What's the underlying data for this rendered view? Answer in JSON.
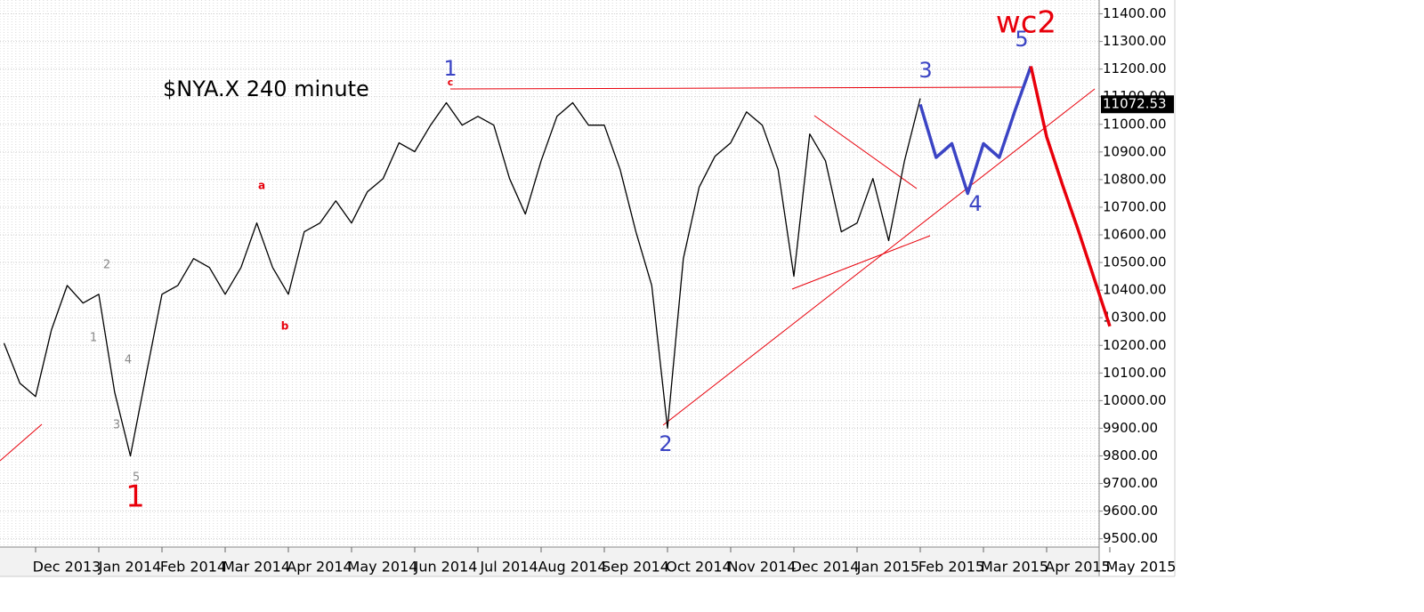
{
  "chart_data": {
    "type": "line",
    "title": "$NYA.X 240 minute",
    "categories": [
      null,
      null,
      "Dec 2013",
      null,
      null,
      null,
      "Jan 2014",
      null,
      null,
      null,
      "Feb 2014",
      null,
      null,
      null,
      "Mar 2014",
      null,
      null,
      null,
      "Apr 2014",
      null,
      null,
      null,
      "May 2014",
      null,
      null,
      null,
      "Jun 2014",
      null,
      null,
      null,
      "Jul 2014",
      null,
      null,
      null,
      "Aug 2014",
      null,
      null,
      null,
      "Sep 2014",
      null,
      null,
      null,
      "Oct 2014",
      null,
      null,
      null,
      "Nov 2014",
      null,
      null,
      null,
      "Dec 2014",
      null,
      null,
      null,
      "Jan 2015",
      null,
      null,
      null,
      "Feb 2015",
      null,
      null,
      null,
      "Mar 2015",
      null,
      null,
      null,
      "Apr 2015",
      null,
      null,
      null,
      "May 2015"
    ],
    "series": [
      {
        "color": "#000000",
        "values": [
          10208,
          10063,
          10015,
          10256,
          10417,
          10353,
          10385,
          10031,
          9800,
          10095,
          10385,
          10417,
          10514,
          10482,
          10385,
          10482,
          10643,
          10482,
          10385,
          10611,
          10643,
          10723,
          10643,
          10756,
          10804,
          10933,
          10901,
          10997,
          11078,
          10997,
          11029,
          10997,
          10804,
          10675,
          10868,
          11029,
          11078,
          10997,
          10997,
          10836,
          10611,
          10417,
          9900,
          10514,
          10772,
          10884,
          10933,
          11045,
          10997,
          10836,
          10450,
          10965,
          10868,
          10611,
          10643,
          10804,
          10579,
          10868,
          11094,
          null,
          null,
          null,
          null,
          null,
          null,
          null,
          null,
          null,
          null,
          null,
          null
        ]
      },
      {
        "color": "#3b44c4",
        "values": [
          null,
          null,
          null,
          null,
          null,
          null,
          null,
          null,
          null,
          null,
          null,
          null,
          null,
          null,
          null,
          null,
          null,
          null,
          null,
          null,
          null,
          null,
          null,
          null,
          null,
          null,
          null,
          null,
          null,
          null,
          null,
          null,
          null,
          null,
          null,
          null,
          null,
          null,
          null,
          null,
          null,
          null,
          null,
          null,
          null,
          null,
          null,
          null,
          null,
          null,
          null,
          null,
          null,
          null,
          null,
          null,
          null,
          null,
          11072,
          10880,
          10930,
          10750,
          10930,
          10880,
          11050,
          11210,
          null,
          null,
          null,
          null,
          null
        ]
      },
      {
        "color": "#e8000b",
        "values": [
          null,
          null,
          null,
          null,
          null,
          null,
          null,
          null,
          null,
          null,
          null,
          null,
          null,
          null,
          null,
          null,
          null,
          null,
          null,
          null,
          null,
          null,
          null,
          null,
          null,
          null,
          null,
          null,
          null,
          null,
          null,
          null,
          null,
          null,
          null,
          null,
          null,
          null,
          null,
          null,
          null,
          null,
          null,
          null,
          null,
          null,
          null,
          null,
          null,
          null,
          null,
          null,
          null,
          null,
          null,
          null,
          null,
          null,
          null,
          null,
          null,
          null,
          null,
          null,
          null,
          11210,
          10955,
          10781,
          10617,
          10443,
          10269
        ]
      }
    ],
    "last_price": 11072.53,
    "annotations": [
      "1",
      "c",
      "a",
      "b",
      "2",
      "1",
      "4",
      "3",
      "5",
      "1",
      "2",
      "3",
      "4",
      "5",
      "wc2"
    ],
    "ylim": [
      9470,
      11450
    ],
    "yticks": [
      {
        "value": 9500,
        "label": "9500.00"
      },
      {
        "value": 9600,
        "label": "9600.00"
      },
      {
        "value": 9700,
        "label": "9700.00"
      },
      {
        "value": 9800,
        "label": "9800.00"
      },
      {
        "value": 9900,
        "label": "9900.00"
      },
      {
        "value": 10000,
        "label": "10000.00"
      },
      {
        "value": 10100,
        "label": "10100.00"
      },
      {
        "value": 10200,
        "label": "10200.00"
      },
      {
        "value": 10300,
        "label": "10300.00"
      },
      {
        "value": 10400,
        "label": "10400.00"
      },
      {
        "value": 10500,
        "label": "10500.00"
      },
      {
        "value": 10600,
        "label": "10600.00"
      },
      {
        "value": 10700,
        "label": "10700.00"
      },
      {
        "value": 10800,
        "label": "10800.00"
      },
      {
        "value": 10900,
        "label": "10900.00"
      },
      {
        "value": 11000,
        "label": "11000.00"
      },
      {
        "value": 11100,
        "label": "11100.00"
      },
      {
        "value": 11200,
        "label": "11200.00"
      },
      {
        "value": 11300,
        "label": "11300.00"
      },
      {
        "value": 11400,
        "label": "11400.00"
      }
    ],
    "grid": true
  }
}
